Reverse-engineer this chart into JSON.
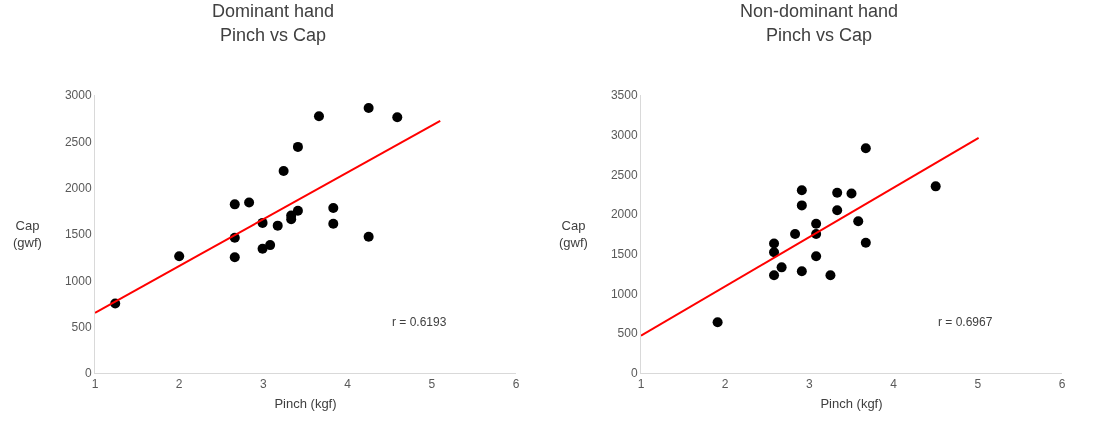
{
  "chart_data": [
    {
      "type": "scatter",
      "title": "Dominant hand",
      "subtitle": "Pinch vs Cap",
      "xlabel": "Pinch (kgf)",
      "ylabel": "Cap (gwf)",
      "annotations": [
        "r = 0.6193"
      ],
      "xlim": [
        1,
        6
      ],
      "xticks": [
        1,
        2,
        3,
        4,
        5,
        6
      ],
      "ylim": [
        0,
        3000
      ],
      "yticks": [
        0,
        500,
        1000,
        1500,
        2000,
        2500,
        3000
      ],
      "grid": false,
      "marker": "circle",
      "series": [
        {
          "color": "#000000",
          "x": [
            1.24,
            2.0,
            2.66,
            2.66,
            2.66,
            2.83,
            2.99,
            2.99,
            3.08,
            3.17,
            3.24,
            3.33,
            3.33,
            3.41,
            3.41,
            3.66,
            3.83,
            3.83,
            4.25,
            4.25,
            4.59
          ],
          "values": [
            750,
            1260,
            1820,
            1460,
            1250,
            1840,
            1620,
            1340,
            1380,
            1590,
            2180,
            1700,
            1660,
            1750,
            2440,
            2770,
            1780,
            1610,
            2860,
            1470,
            2760
          ]
        },
        {
          "type": "line",
          "color": "#ff0000",
          "line_style": "solid",
          "marker": "none",
          "x": [
            1,
            5.1
          ],
          "values": [
            650,
            2720
          ]
        }
      ]
    },
    {
      "type": "scatter",
      "title": "Non-dominant hand",
      "subtitle": "Pinch vs Cap",
      "xlabel": "Pinch (kgf)",
      "ylabel": "Cap (gwf)",
      "annotations": [
        "r = 0.6967"
      ],
      "xlim": [
        1,
        6
      ],
      "xticks": [
        1,
        2,
        3,
        4,
        5,
        6
      ],
      "ylim": [
        0,
        3500
      ],
      "yticks": [
        0,
        500,
        1000,
        1500,
        2000,
        2500,
        3000,
        3500
      ],
      "grid": false,
      "marker": "circle",
      "series": [
        {
          "color": "#000000",
          "x": [
            1.91,
            2.58,
            2.58,
            2.58,
            2.67,
            2.83,
            2.91,
            2.91,
            2.91,
            3.08,
            3.08,
            3.08,
            3.25,
            3.33,
            3.33,
            3.5,
            3.58,
            3.67,
            3.67,
            4.5
          ],
          "values": [
            640,
            1630,
            1520,
            1230,
            1330,
            1750,
            2300,
            2110,
            1280,
            1880,
            1750,
            1470,
            1230,
            2270,
            2050,
            2260,
            1910,
            2830,
            1640,
            2350
          ]
        },
        {
          "type": "line",
          "color": "#ff0000",
          "line_style": "solid",
          "marker": "none",
          "x": [
            1,
            5.01
          ],
          "values": [
            470,
            2960
          ]
        }
      ]
    }
  ]
}
